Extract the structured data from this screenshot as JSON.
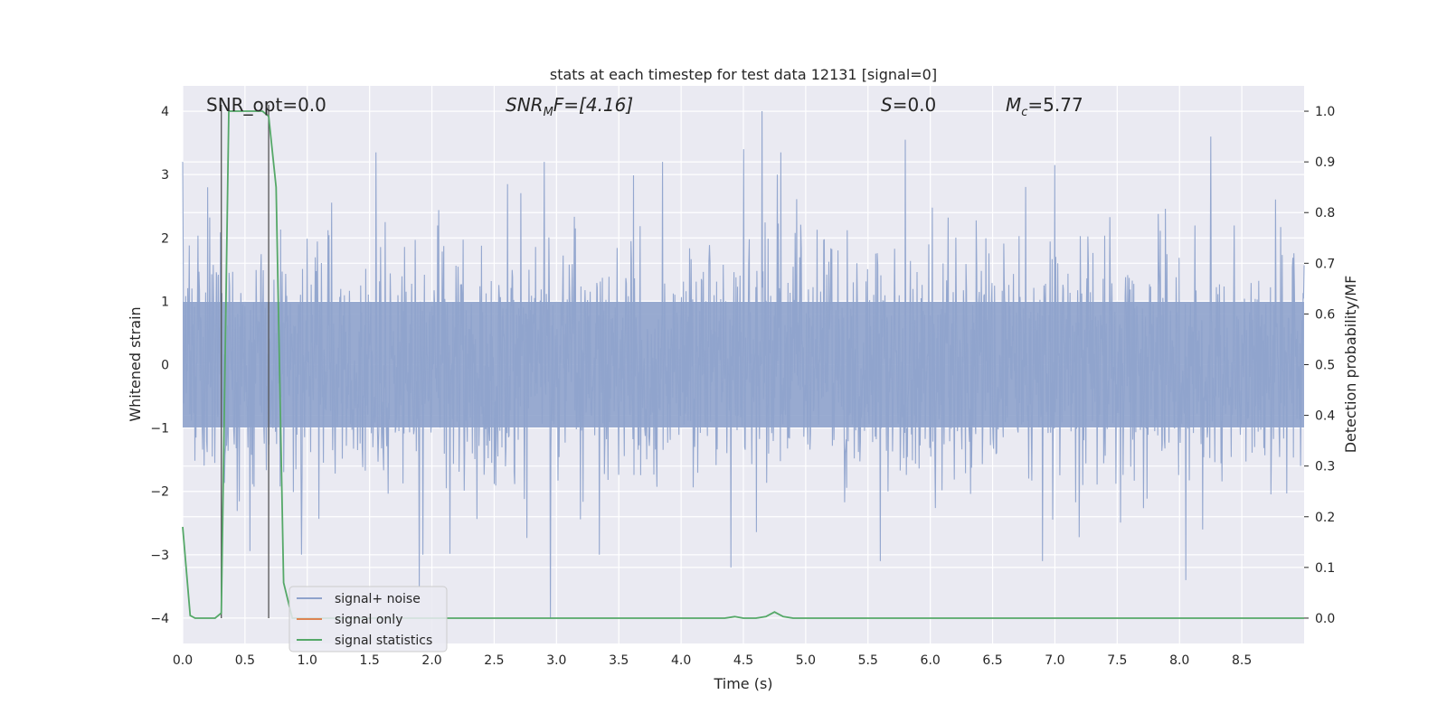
{
  "chart_data": {
    "type": "line",
    "title": "stats at each timestep for test data 12131 [signal=0]",
    "xlabel": "Time (s)",
    "ylabel_left": "Whitened strain",
    "ylabel_right": "Detection probability/MF",
    "xlim": [
      0.0,
      9.0
    ],
    "ylim_left": [
      -4.4,
      4.4
    ],
    "ylim_right": [
      -0.05,
      1.05
    ],
    "grid": true,
    "legend_placement": "lower-left",
    "x_ticks": [
      "0.0",
      "0.5",
      "1.0",
      "1.5",
      "2.0",
      "2.5",
      "3.0",
      "3.5",
      "4.0",
      "4.5",
      "5.0",
      "5.5",
      "6.0",
      "6.5",
      "7.0",
      "7.5",
      "8.0",
      "8.5"
    ],
    "y_left_ticks": [
      "4",
      "3",
      "2",
      "1",
      "0",
      "−1",
      "−2",
      "−3",
      "−4"
    ],
    "y_right_ticks": [
      "1.0",
      "0.9",
      "0.8",
      "0.7",
      "0.6",
      "0.5",
      "0.4",
      "0.3",
      "0.2",
      "0.1",
      "0.0"
    ],
    "annotations": {
      "snr_opt": "SNR_opt=0.0",
      "snr_mf_base": "SNR",
      "snr_mf_sub": "M",
      "snr_mf_tail": "F=[4.16]",
      "s_sym": "S",
      "s_val": "=0.0",
      "mc_sym": "M",
      "mc_sub": "c",
      "mc_val": "=5.77"
    },
    "vertical_markers_x": [
      0.31,
      0.69
    ],
    "series": [
      {
        "name": "signal+ noise",
        "color": "#8fa3cc",
        "description_envelope": {
          "typical_upper": 1.6,
          "typical_lower": -1.6,
          "spikes": [
            {
              "x": 0.0,
              "y": 3.2
            },
            {
              "x": 0.2,
              "y": 2.8
            },
            {
              "x": 1.55,
              "y": 3.35
            },
            {
              "x": 2.9,
              "y": 3.2
            },
            {
              "x": 3.85,
              "y": 3.2
            },
            {
              "x": 4.5,
              "y": 3.4
            },
            {
              "x": 4.65,
              "y": 4.0
            },
            {
              "x": 4.8,
              "y": 3.35
            },
            {
              "x": 5.8,
              "y": 3.55
            },
            {
              "x": 7.0,
              "y": 3.15
            },
            {
              "x": 8.25,
              "y": 3.6
            },
            {
              "x": 1.9,
              "y": -3.5
            },
            {
              "x": 2.95,
              "y": -4.0
            },
            {
              "x": 4.4,
              "y": -3.2
            },
            {
              "x": 5.6,
              "y": -3.1
            },
            {
              "x": 8.05,
              "y": -3.4
            },
            {
              "x": 6.9,
              "y": -3.1
            }
          ]
        }
      },
      {
        "name": "signal only",
        "color": "#dd8452",
        "x": [],
        "y": []
      },
      {
        "name": "signal statistics",
        "color": "#55a868",
        "x": [
          0.0,
          0.06,
          0.1,
          0.2,
          0.26,
          0.31,
          0.37,
          0.46,
          0.56,
          0.64,
          0.69,
          0.75,
          0.81,
          0.88,
          0.94,
          1.0,
          2.0,
          3.0,
          4.0,
          4.35,
          4.43,
          4.5,
          4.6,
          4.68,
          4.75,
          4.82,
          4.9,
          5.0,
          6.0,
          7.0,
          8.0,
          9.0
        ],
        "y": [
          0.18,
          0.005,
          0.0,
          0.0,
          0.0,
          0.01,
          1.0,
          1.0,
          1.0,
          1.0,
          0.99,
          0.85,
          0.07,
          0.0,
          0.0,
          0.0,
          0.0,
          0.0,
          0.0,
          0.0,
          0.003,
          0.0,
          0.0,
          0.003,
          0.012,
          0.003,
          0.0,
          0.0,
          0.0,
          0.0,
          0.0,
          0.0
        ]
      }
    ]
  },
  "legend": {
    "item1": "signal+ noise",
    "item2": "signal only",
    "item3": "signal statistics"
  }
}
